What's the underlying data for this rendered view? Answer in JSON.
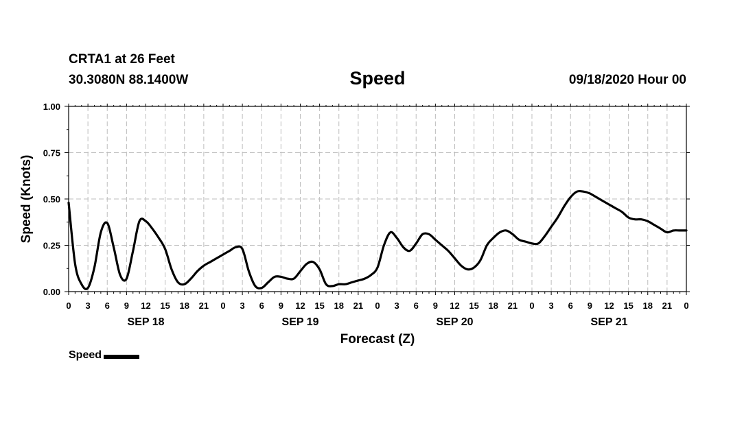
{
  "header": {
    "station": "CRTA1 at 26 Feet",
    "coords": "30.3080N 88.1400W",
    "title": "Speed",
    "timestamp": "09/18/2020 Hour 00"
  },
  "legend": {
    "label": "Speed",
    "color": "#000000"
  },
  "chart_data": {
    "type": "line",
    "title": "Speed",
    "xlabel": "Forecast (Z)",
    "ylabel": "Speed (Knots)",
    "ylim": [
      0,
      1
    ],
    "xlim_hours": [
      0,
      96
    ],
    "grid": true,
    "legend_position": "bottom-left",
    "y_ticks": [
      "0.00",
      "0.25",
      "0.50",
      "0.75",
      "1.00"
    ],
    "x_tick_labels": [
      "0",
      "3",
      "6",
      "9",
      "12",
      "15",
      "18",
      "21",
      "0",
      "3",
      "6",
      "9",
      "12",
      "15",
      "18",
      "21",
      "0",
      "3",
      "6",
      "9",
      "12",
      "15",
      "18",
      "21",
      "0",
      "3",
      "6",
      "9",
      "12",
      "15",
      "18",
      "21",
      "0"
    ],
    "day_labels": [
      {
        "label": "SEP 18",
        "hour": 12
      },
      {
        "label": "SEP 19",
        "hour": 36
      },
      {
        "label": "SEP 20",
        "hour": 60
      },
      {
        "label": "SEP 21",
        "hour": 84
      }
    ],
    "series": [
      {
        "name": "Speed",
        "color": "#000000",
        "x_hours": [
          0,
          1,
          2,
          3,
          4,
          5,
          6,
          7,
          8,
          9,
          10,
          11,
          12,
          13,
          14,
          15,
          16,
          17,
          18,
          19,
          20,
          21,
          22,
          23,
          24,
          25,
          26,
          27,
          28,
          29,
          30,
          31,
          32,
          33,
          34,
          35,
          36,
          37,
          38,
          39,
          40,
          41,
          42,
          43,
          44,
          45,
          46,
          47,
          48,
          49,
          50,
          51,
          52,
          53,
          54,
          55,
          56,
          57,
          58,
          59,
          60,
          61,
          62,
          63,
          64,
          65,
          66,
          67,
          68,
          69,
          70,
          71,
          72,
          73,
          74,
          75,
          76,
          77,
          78,
          79,
          80,
          81,
          82,
          83,
          84,
          85,
          86,
          87,
          88,
          89,
          90,
          91,
          92,
          93,
          94,
          95,
          96
        ],
        "values": [
          0.48,
          0.15,
          0.04,
          0.02,
          0.13,
          0.32,
          0.37,
          0.24,
          0.09,
          0.07,
          0.22,
          0.38,
          0.38,
          0.34,
          0.29,
          0.23,
          0.12,
          0.05,
          0.04,
          0.07,
          0.11,
          0.14,
          0.16,
          0.18,
          0.2,
          0.22,
          0.24,
          0.23,
          0.11,
          0.03,
          0.02,
          0.05,
          0.08,
          0.08,
          0.07,
          0.07,
          0.11,
          0.15,
          0.16,
          0.12,
          0.04,
          0.03,
          0.04,
          0.04,
          0.05,
          0.06,
          0.07,
          0.09,
          0.13,
          0.25,
          0.32,
          0.29,
          0.24,
          0.22,
          0.26,
          0.31,
          0.31,
          0.28,
          0.25,
          0.22,
          0.18,
          0.14,
          0.12,
          0.13,
          0.17,
          0.25,
          0.29,
          0.32,
          0.33,
          0.31,
          0.28,
          0.27,
          0.26,
          0.26,
          0.3,
          0.35,
          0.4,
          0.46,
          0.51,
          0.54,
          0.54,
          0.53,
          0.51,
          0.49,
          0.47,
          0.45,
          0.43,
          0.4,
          0.39,
          0.39,
          0.38,
          0.36,
          0.34,
          0.32,
          0.33,
          0.33,
          0.33
        ]
      }
    ]
  }
}
